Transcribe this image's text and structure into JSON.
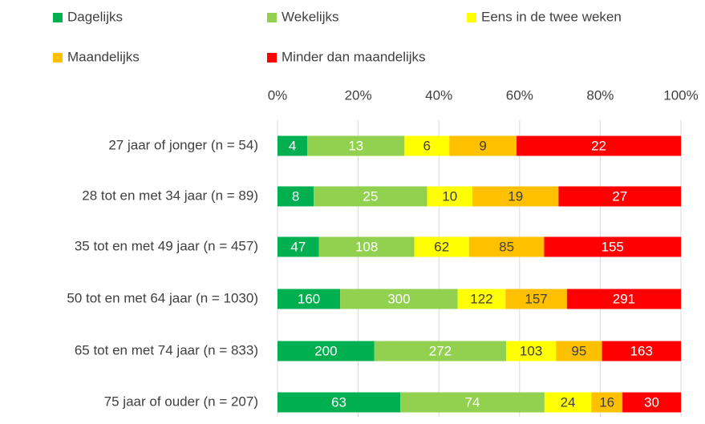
{
  "chart_data": {
    "type": "bar",
    "orientation": "horizontal",
    "stacked": "percent",
    "categories": [
      "27 jaar of jonger (n = 54)",
      "28 tot en met 34 jaar (n = 89)",
      "35 tot en met 49 jaar (n = 457)",
      "50 tot en met 64 jaar (n = 1030)",
      "65 tot en met 74 jaar (n = 833)",
      "75 jaar of ouder (n = 207)"
    ],
    "series": [
      {
        "name": "Dagelijks",
        "color": "#00b050",
        "label_color": "#ffffff",
        "values": [
          4,
          8,
          47,
          160,
          200,
          63
        ]
      },
      {
        "name": "Wekelijks",
        "color": "#92d050",
        "label_color": "#ffffff",
        "values": [
          13,
          25,
          108,
          300,
          272,
          74
        ]
      },
      {
        "name": "Eens in de twee weken",
        "color": "#ffff00",
        "label_color": "#404040",
        "values": [
          6,
          10,
          62,
          122,
          103,
          24
        ]
      },
      {
        "name": "Maandelijks",
        "color": "#ffc000",
        "label_color": "#404040",
        "values": [
          9,
          19,
          85,
          157,
          95,
          16
        ]
      },
      {
        "name": "Minder dan maandelijks",
        "color": "#ff0000",
        "label_color": "#ffffff",
        "values": [
          22,
          27,
          155,
          291,
          163,
          30
        ]
      }
    ],
    "xlim": [
      0,
      100
    ],
    "xticks": [
      {
        "value": 0,
        "label": "0%"
      },
      {
        "value": 20,
        "label": "20%"
      },
      {
        "value": 40,
        "label": "40%"
      },
      {
        "value": 60,
        "label": "60%"
      },
      {
        "value": 80,
        "label": "80%"
      },
      {
        "value": 100,
        "label": "100%"
      }
    ],
    "grid": true,
    "legend": "top"
  }
}
